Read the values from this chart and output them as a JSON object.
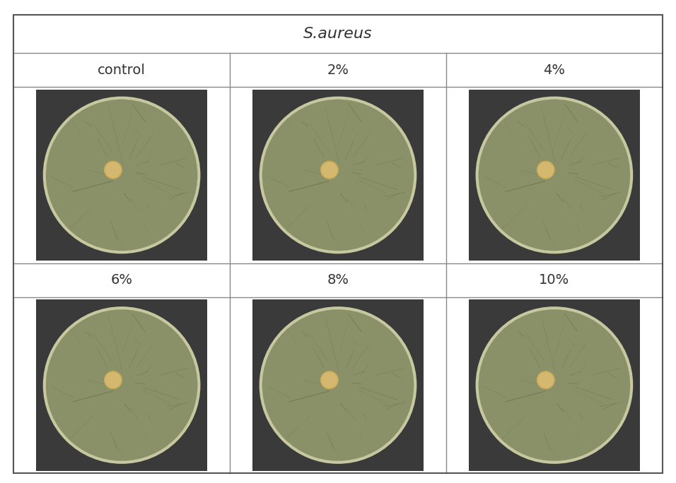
{
  "title": "S.aureus",
  "title_style": "italic",
  "labels": [
    "control",
    "2%",
    "4%",
    "6%",
    "8%",
    "10%"
  ],
  "grid_rows": 2,
  "grid_cols": 3,
  "background_color": "#ffffff",
  "outer_border_color": "#555555",
  "cell_border_color": "#999999",
  "header_bg": "#ffffff",
  "dish_bg_color": "#8a9068",
  "dish_shadow_color": "#3a3a3a",
  "dish_edge_color": "#c8c8a0",
  "disk_color": "#d4b870",
  "disk_edge_color": "#c8a850",
  "figure_width": 9.56,
  "figure_height": 6.84,
  "title_fontsize": 16,
  "label_fontsize": 14
}
